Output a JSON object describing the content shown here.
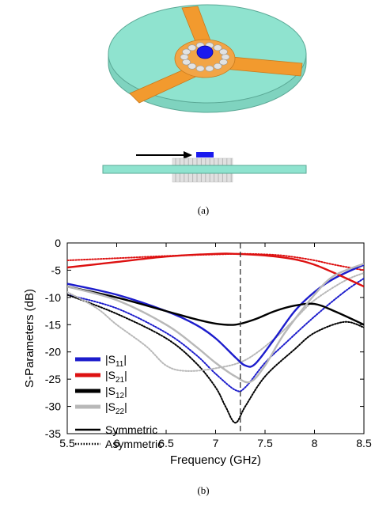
{
  "panel_a": {
    "caption": "(a)"
  },
  "panel_b": {
    "caption": "(b)"
  },
  "colors": {
    "substrate": "#8fe3cf",
    "substrate_edge": "#6fbca8",
    "arm": "#f29a2e",
    "via": "#e2e2e2",
    "center": "#1a1aee"
  },
  "chart_data": {
    "type": "line",
    "xlabel": "Frequency (GHz)",
    "ylabel": "S-Parameters (dB)",
    "xlim": [
      5.5,
      8.5
    ],
    "ylim": [
      -35,
      0
    ],
    "xticks": [
      "5.5",
      "6",
      "6.5",
      "7",
      "7.5",
      "8",
      "8.5"
    ],
    "yticks": [
      "0",
      "-5",
      "-10",
      "-15",
      "-20",
      "-25",
      "-30",
      "-35"
    ],
    "vline_x": 7.25,
    "legend_location": "lower-left",
    "series": [
      {
        "name": "|S11|",
        "color": "#1c1ccc",
        "style": "Symmetric",
        "x": [
          5.5,
          6.0,
          6.5,
          6.8,
          7.0,
          7.2,
          7.3,
          7.4,
          7.6,
          7.8,
          8.0,
          8.2,
          8.5
        ],
        "y": [
          -7.5,
          -9.5,
          -12.5,
          -15.0,
          -17.5,
          -21.0,
          -22.5,
          -22.2,
          -17.5,
          -12.5,
          -9.0,
          -6.5,
          -4.0
        ]
      },
      {
        "name": "|S11|",
        "color": "#1c1ccc",
        "style": "Asymmetric",
        "x": [
          5.5,
          6.0,
          6.5,
          6.8,
          7.0,
          7.2,
          7.3,
          7.5,
          7.7,
          8.0,
          8.3,
          8.5
        ],
        "y": [
          -9.5,
          -12.0,
          -16.5,
          -20.5,
          -24.0,
          -27.0,
          -26.5,
          -22.0,
          -18.5,
          -13.5,
          -9.0,
          -6.5
        ]
      },
      {
        "name": "|S21|",
        "color": "#dd1111",
        "style": "Symmetric",
        "x": [
          5.5,
          6.0,
          6.5,
          7.0,
          7.2,
          7.5,
          7.8,
          8.0,
          8.2,
          8.5
        ],
        "y": [
          -4.5,
          -3.5,
          -2.5,
          -2.0,
          -2.0,
          -2.3,
          -3.0,
          -4.0,
          -5.5,
          -8.0
        ]
      },
      {
        "name": "|S21|",
        "color": "#dd1111",
        "style": "Asymmetric",
        "x": [
          5.5,
          6.0,
          6.5,
          7.0,
          7.3,
          7.6,
          7.8,
          8.0,
          8.2,
          8.5
        ],
        "y": [
          -3.2,
          -2.8,
          -2.4,
          -2.1,
          -2.0,
          -2.2,
          -2.6,
          -3.2,
          -4.0,
          -5.0
        ]
      },
      {
        "name": "|S12|",
        "color": "#000000",
        "style": "Symmetric",
        "x": [
          5.5,
          6.0,
          6.5,
          6.8,
          7.0,
          7.2,
          7.4,
          7.6,
          7.8,
          8.0,
          8.2,
          8.5
        ],
        "y": [
          -8.0,
          -10.0,
          -12.5,
          -14.0,
          -14.8,
          -15.0,
          -14.0,
          -12.5,
          -11.5,
          -11.2,
          -12.5,
          -15.0
        ]
      },
      {
        "name": "|S12|",
        "color": "#000000",
        "style": "Asymmetric",
        "x": [
          5.5,
          6.0,
          6.5,
          6.8,
          7.0,
          7.1,
          7.2,
          7.3,
          7.5,
          7.8,
          8.0,
          8.3,
          8.5
        ],
        "y": [
          -9.5,
          -13.0,
          -17.5,
          -22.0,
          -26.5,
          -30.0,
          -33.0,
          -30.0,
          -24.5,
          -19.5,
          -16.5,
          -14.5,
          -15.5
        ]
      },
      {
        "name": "|S22|",
        "color": "#b8b8b8",
        "style": "Symmetric",
        "x": [
          5.5,
          6.0,
          6.5,
          6.8,
          7.0,
          7.2,
          7.35,
          7.5,
          7.7,
          8.0,
          8.2,
          8.5
        ],
        "y": [
          -8.0,
          -10.5,
          -15.0,
          -19.0,
          -22.0,
          -24.5,
          -25.5,
          -22.5,
          -16.5,
          -9.5,
          -6.0,
          -3.8
        ]
      },
      {
        "name": "|S22|",
        "color": "#b8b8b8",
        "style": "Asymmetric",
        "x": [
          5.5,
          5.8,
          6.0,
          6.3,
          6.5,
          6.7,
          7.0,
          7.3,
          7.6,
          7.8,
          8.0,
          8.3,
          8.5
        ],
        "y": [
          -9.0,
          -12.0,
          -15.0,
          -19.0,
          -22.5,
          -23.5,
          -23.0,
          -21.5,
          -17.5,
          -14.0,
          -10.5,
          -7.0,
          -5.5
        ]
      }
    ],
    "legend_entries": [
      {
        "label": "|S",
        "sub": "11",
        "tail": "|",
        "color": "#1c1ccc"
      },
      {
        "label": "|S",
        "sub": "21",
        "tail": "|",
        "color": "#dd1111"
      },
      {
        "label": "|S",
        "sub": "12",
        "tail": "|",
        "color": "#000000"
      },
      {
        "label": "|S",
        "sub": "22",
        "tail": "|",
        "color": "#b8b8b8"
      }
    ],
    "style_entries": [
      {
        "label": "Symmetric",
        "dash": "solid"
      },
      {
        "label": "Asymmetric",
        "dash": "dotted"
      }
    ]
  }
}
